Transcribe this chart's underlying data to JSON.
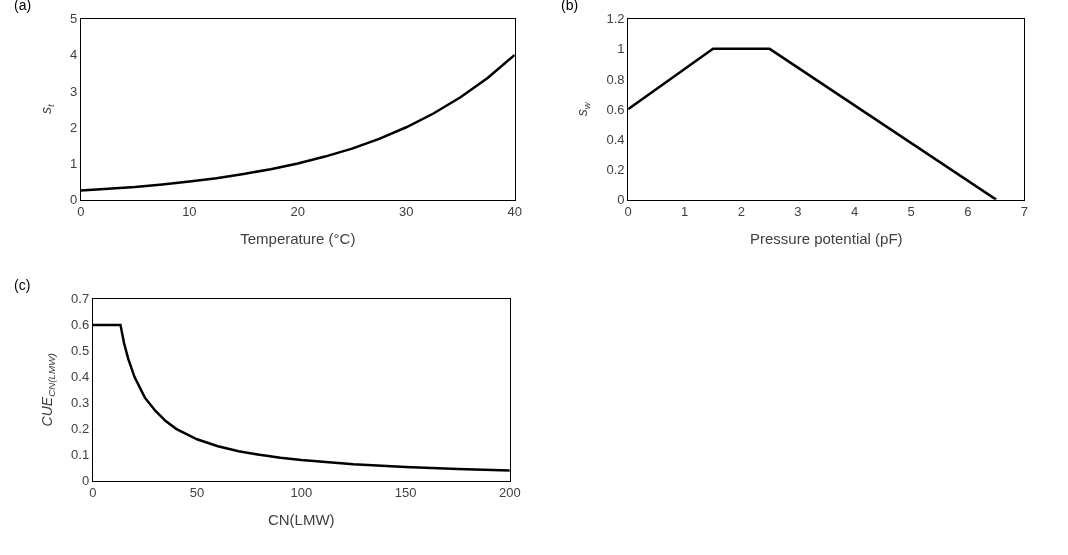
{
  "chart_data": [
    {
      "type": "line",
      "title": "(a)",
      "xlabel": "Temperature (°C)",
      "ylabel": "s$_{t}$",
      "x": [
        0,
        2.5,
        5,
        7.5,
        10,
        12.5,
        15,
        17.5,
        20,
        22.5,
        25,
        27.5,
        30,
        32.5,
        35,
        37.5,
        40
      ],
      "series": [
        {
          "color": "#000000",
          "values": [
            0.25,
            0.3,
            0.35,
            0.42,
            0.5,
            0.59,
            0.71,
            0.84,
            1,
            1.19,
            1.41,
            1.68,
            2,
            2.38,
            2.83,
            3.36,
            4
          ]
        }
      ],
      "xlim": [
        0,
        40
      ],
      "xticks": [
        0,
        10,
        20,
        30,
        40
      ],
      "ylim": [
        0,
        5
      ],
      "yticks": [
        0,
        1,
        2,
        3,
        4,
        5
      ],
      "marker": "none",
      "line_style": "solid"
    },
    {
      "type": "line",
      "title": "(b)",
      "xlabel": "Pressure potential (pF)",
      "ylabel": "s$_{w}$",
      "x": [
        0,
        1.5,
        2.5,
        6.5
      ],
      "series": [
        {
          "color": "#000000",
          "values": [
            0.6,
            1,
            1,
            0
          ]
        }
      ],
      "xlim": [
        0,
        7
      ],
      "xticks": [
        0,
        1,
        2,
        3,
        4,
        5,
        6,
        7
      ],
      "ylim": [
        0,
        1.2
      ],
      "yticks": [
        0,
        0.2,
        0.4,
        0.6,
        0.8,
        1,
        1.2
      ],
      "marker": "none",
      "line_style": "solid"
    },
    {
      "type": "line",
      "title": "(c)",
      "xlabel": "CN(LMW)",
      "ylabel": "CUE$_{CN(LMW)}$",
      "x": [
        0,
        13.3,
        15,
        17,
        20,
        25,
        30,
        35,
        40,
        45,
        50,
        60,
        70,
        80,
        90,
        100,
        125,
        150,
        175,
        200
      ],
      "series": [
        {
          "color": "#000000",
          "values": [
            0.6,
            0.6,
            0.53,
            0.47,
            0.4,
            0.32,
            0.27,
            0.23,
            0.2,
            0.18,
            0.16,
            0.133,
            0.114,
            0.1,
            0.089,
            0.08,
            0.064,
            0.053,
            0.046,
            0.04
          ]
        }
      ],
      "xlim": [
        0,
        200
      ],
      "xticks": [
        0,
        50,
        100,
        150,
        200
      ],
      "ylim": [
        0,
        0.7
      ],
      "yticks": [
        0,
        0.1,
        0.2,
        0.3,
        0.4,
        0.5,
        0.6,
        0.7
      ],
      "marker": "none",
      "line_style": "solid"
    }
  ]
}
